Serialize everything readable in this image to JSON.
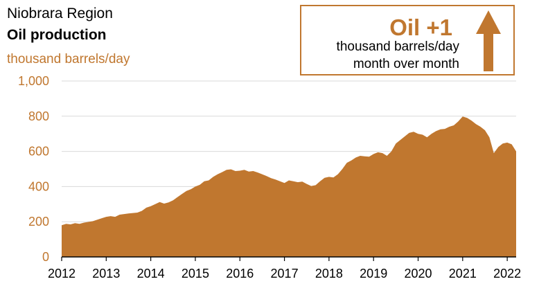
{
  "header": {
    "region": "Niobrara Region",
    "title": "Oil production",
    "unit": "thousand barrels/day"
  },
  "callout": {
    "headline": "Oil +1",
    "line1": "thousand barrels/day",
    "line2": "month over month",
    "direction": "up",
    "icon": "up-arrow-icon"
  },
  "colors": {
    "fill": "#c0772f",
    "axis": "#000000",
    "gridline": "#d9d9d9"
  },
  "chart_data": {
    "type": "area",
    "title": "Oil production",
    "ylabel": "thousand barrels/day",
    "ylim": [
      0,
      1000
    ],
    "yticks": [
      0,
      200,
      400,
      600,
      800,
      1000
    ],
    "ytick_labels": [
      "0",
      "200",
      "400",
      "600",
      "800",
      "1,000"
    ],
    "xlim": [
      2012,
      2022.2
    ],
    "xticks": [
      2012,
      2013,
      2014,
      2015,
      2016,
      2017,
      2018,
      2019,
      2020,
      2021,
      2022
    ],
    "xtick_labels": [
      "2012",
      "2013",
      "2014",
      "2015",
      "2016",
      "2017",
      "2018",
      "2019",
      "2020",
      "2021",
      "2022"
    ],
    "grid": true,
    "series": [
      {
        "points": [
          [
            2012.0,
            180
          ],
          [
            2012.1,
            188
          ],
          [
            2012.2,
            185
          ],
          [
            2012.3,
            192
          ],
          [
            2012.4,
            188
          ],
          [
            2012.5,
            195
          ],
          [
            2012.7,
            203
          ],
          [
            2012.9,
            220
          ],
          [
            2013.0,
            228
          ],
          [
            2013.1,
            232
          ],
          [
            2013.2,
            228
          ],
          [
            2013.3,
            240
          ],
          [
            2013.5,
            247
          ],
          [
            2013.7,
            252
          ],
          [
            2013.8,
            262
          ],
          [
            2013.9,
            280
          ],
          [
            2014.0,
            288
          ],
          [
            2014.1,
            300
          ],
          [
            2014.2,
            312
          ],
          [
            2014.3,
            303
          ],
          [
            2014.4,
            310
          ],
          [
            2014.5,
            322
          ],
          [
            2014.6,
            340
          ],
          [
            2014.7,
            358
          ],
          [
            2014.8,
            375
          ],
          [
            2014.9,
            385
          ],
          [
            2015.0,
            400
          ],
          [
            2015.1,
            410
          ],
          [
            2015.2,
            430
          ],
          [
            2015.3,
            435
          ],
          [
            2015.4,
            455
          ],
          [
            2015.5,
            470
          ],
          [
            2015.6,
            482
          ],
          [
            2015.7,
            495
          ],
          [
            2015.8,
            498
          ],
          [
            2015.9,
            488
          ],
          [
            2016.0,
            490
          ],
          [
            2016.1,
            495
          ],
          [
            2016.2,
            485
          ],
          [
            2016.3,
            488
          ],
          [
            2016.4,
            480
          ],
          [
            2016.5,
            470
          ],
          [
            2016.6,
            460
          ],
          [
            2016.7,
            448
          ],
          [
            2016.8,
            440
          ],
          [
            2016.9,
            430
          ],
          [
            2017.0,
            420
          ],
          [
            2017.1,
            435
          ],
          [
            2017.2,
            430
          ],
          [
            2017.3,
            425
          ],
          [
            2017.4,
            428
          ],
          [
            2017.5,
            415
          ],
          [
            2017.6,
            403
          ],
          [
            2017.7,
            408
          ],
          [
            2017.8,
            430
          ],
          [
            2017.9,
            450
          ],
          [
            2018.0,
            455
          ],
          [
            2018.1,
            452
          ],
          [
            2018.2,
            470
          ],
          [
            2018.3,
            500
          ],
          [
            2018.4,
            535
          ],
          [
            2018.5,
            548
          ],
          [
            2018.6,
            565
          ],
          [
            2018.7,
            575
          ],
          [
            2018.8,
            572
          ],
          [
            2018.9,
            570
          ],
          [
            2019.0,
            585
          ],
          [
            2019.1,
            595
          ],
          [
            2019.2,
            590
          ],
          [
            2019.3,
            575
          ],
          [
            2019.4,
            600
          ],
          [
            2019.5,
            645
          ],
          [
            2019.6,
            665
          ],
          [
            2019.7,
            685
          ],
          [
            2019.8,
            705
          ],
          [
            2019.9,
            712
          ],
          [
            2020.0,
            700
          ],
          [
            2020.1,
            695
          ],
          [
            2020.2,
            680
          ],
          [
            2020.3,
            700
          ],
          [
            2020.4,
            715
          ],
          [
            2020.5,
            725
          ],
          [
            2020.6,
            728
          ],
          [
            2020.7,
            740
          ],
          [
            2020.8,
            748
          ],
          [
            2020.9,
            770
          ],
          [
            2021.0,
            798
          ],
          [
            2021.1,
            790
          ],
          [
            2021.2,
            775
          ],
          [
            2021.3,
            755
          ],
          [
            2021.4,
            740
          ],
          [
            2021.5,
            720
          ],
          [
            2021.6,
            680
          ],
          [
            2021.7,
            590
          ],
          [
            2021.8,
            625
          ],
          [
            2021.9,
            645
          ],
          [
            2022.0,
            650
          ],
          [
            2022.1,
            640
          ],
          [
            2022.2,
            600
          ]
        ]
      }
    ]
  }
}
